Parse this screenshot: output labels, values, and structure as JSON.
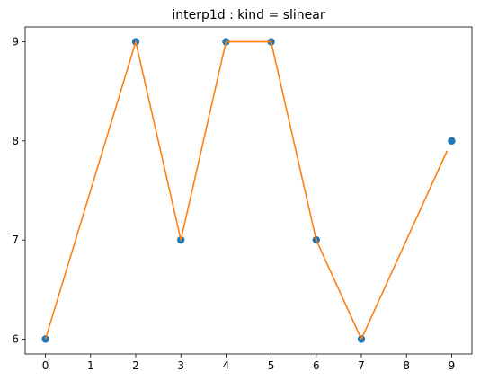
{
  "chart_data": {
    "type": "line",
    "title": "interp1d : kind = slinear",
    "xlabel": "",
    "ylabel": "",
    "xlim": [
      -0.45,
      9.45
    ],
    "ylim": [
      5.85,
      9.15
    ],
    "xticks": [
      0,
      1,
      2,
      3,
      4,
      5,
      6,
      7,
      8,
      9
    ],
    "yticks": [
      6,
      7,
      8,
      9
    ],
    "grid": false,
    "legend": null,
    "series": [
      {
        "kind": "scatter",
        "color": "#1f77b4",
        "x": [
          0,
          2,
          3,
          4,
          5,
          6,
          7,
          9
        ],
        "y": [
          6,
          9,
          7,
          9,
          9,
          7,
          6,
          8
        ]
      },
      {
        "kind": "line",
        "color": "#ff7f0e",
        "x": [
          0,
          2,
          3,
          4,
          5,
          6,
          7,
          8.9
        ],
        "y": [
          6,
          9,
          7,
          9,
          9,
          7,
          6,
          7.9
        ]
      }
    ]
  }
}
